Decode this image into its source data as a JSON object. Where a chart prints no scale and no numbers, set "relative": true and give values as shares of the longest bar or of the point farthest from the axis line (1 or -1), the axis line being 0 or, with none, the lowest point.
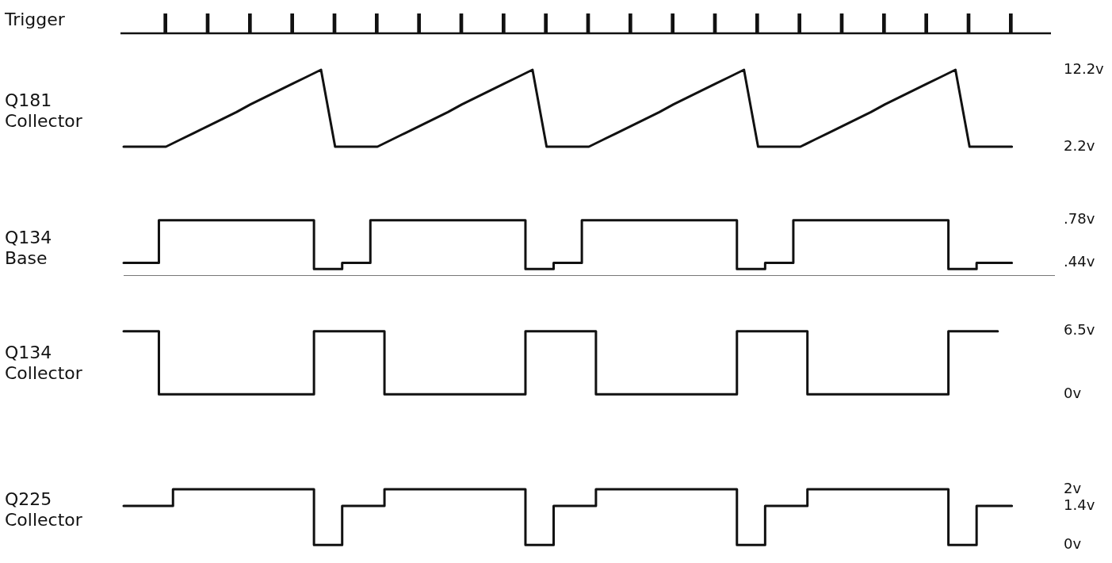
{
  "chart_data": [
    {
      "type": "bar",
      "ylabel": "Trigger",
      "relative": true,
      "tick_labels": false,
      "categories": [
        null,
        null,
        null,
        null,
        null,
        null,
        null,
        null,
        null,
        null,
        null,
        null,
        null,
        null,
        null,
        null,
        null,
        null,
        null,
        null,
        null
      ],
      "series": [
        {
          "color": "#111111",
          "values": [
            1,
            1,
            1,
            1,
            1,
            1,
            1,
            1,
            1,
            1,
            1,
            1,
            1,
            1,
            1,
            1,
            1,
            1,
            1,
            1,
            1
          ]
        }
      ]
    },
    {
      "type": "line",
      "ylabel": "Q181 Collector",
      "ylim": [
        2.2,
        12.2
      ],
      "yticks": [
        {
          "value": 12.2,
          "label": "12.2v"
        },
        {
          "value": 2.2,
          "label": "2.2v"
        }
      ],
      "tick_labels": "y",
      "categories": [
        null,
        null,
        null,
        null,
        null,
        null,
        null,
        null,
        null,
        null,
        null,
        null,
        null,
        null,
        null,
        null,
        null,
        null,
        null,
        null,
        null,
        null,
        null,
        null,
        null,
        null,
        null,
        null,
        null,
        null,
        null,
        null,
        null,
        null,
        null,
        null,
        null,
        null,
        null,
        null,
        null,
        null,
        null,
        null,
        null,
        null,
        null,
        null,
        null,
        null,
        null,
        null,
        null,
        null,
        null,
        null,
        null,
        null,
        null,
        null,
        null,
        null,
        null,
        null,
        null,
        null,
        null
      ],
      "series": [
        {
          "color": "#111111",
          "values": [
            2.2,
            2.2,
            2.2,
            2.2,
            3.1,
            4.0,
            4.9,
            5.8,
            6.7,
            7.7,
            8.6,
            9.5,
            10.4,
            11.3,
            12.2,
            2.2,
            2.2,
            2.2,
            2.2,
            3.1,
            4.0,
            4.9,
            5.8,
            6.7,
            7.7,
            8.6,
            9.5,
            10.4,
            11.3,
            12.2,
            2.2,
            2.2,
            2.2,
            2.2,
            3.1,
            4.0,
            4.9,
            5.8,
            6.7,
            7.7,
            8.6,
            9.5,
            10.4,
            11.3,
            12.2,
            2.2,
            2.2,
            2.2,
            2.2,
            3.1,
            4.0,
            4.9,
            5.8,
            6.7,
            7.7,
            8.6,
            9.5,
            10.4,
            11.3,
            12.2,
            2.2,
            2.2,
            2.2,
            2.2,
            null,
            null,
            null
          ]
        }
      ]
    },
    {
      "type": "step",
      "ylabel": "Q134 Base",
      "ylim": [
        0.34,
        0.78
      ],
      "yticks": [
        {
          "value": 0.78,
          "label": ".78v"
        },
        {
          "value": 0.44,
          "label": ".44v"
        }
      ],
      "tick_labels": "y",
      "categories": [
        null,
        null,
        null,
        null,
        null,
        null,
        null,
        null,
        null,
        null,
        null,
        null,
        null,
        null,
        null,
        null,
        null,
        null,
        null,
        null,
        null,
        null,
        null,
        null,
        null,
        null,
        null,
        null,
        null,
        null,
        null,
        null,
        null,
        null,
        null,
        null,
        null,
        null,
        null,
        null,
        null,
        null,
        null,
        null,
        null,
        null,
        null,
        null,
        null,
        null,
        null,
        null,
        null,
        null,
        null,
        null,
        null,
        null,
        null,
        null,
        null,
        null,
        null,
        null,
        null,
        null,
        null
      ],
      "series": [
        {
          "color": "#111111",
          "values": [
            0.44,
            0.44,
            0.44,
            0.78,
            0.78,
            0.78,
            0.78,
            0.78,
            0.78,
            0.78,
            0.78,
            0.78,
            0.78,
            0.78,
            0.39,
            0.39,
            0.44,
            0.44,
            0.78,
            0.78,
            0.78,
            0.78,
            0.78,
            0.78,
            0.78,
            0.78,
            0.78,
            0.78,
            0.78,
            0.39,
            0.39,
            0.44,
            0.44,
            0.78,
            0.78,
            0.78,
            0.78,
            0.78,
            0.78,
            0.78,
            0.78,
            0.78,
            0.78,
            0.78,
            0.39,
            0.39,
            0.44,
            0.44,
            0.78,
            0.78,
            0.78,
            0.78,
            0.78,
            0.78,
            0.78,
            0.78,
            0.78,
            0.78,
            0.78,
            0.39,
            0.39,
            0.44,
            0.44,
            0.44,
            null,
            null,
            null
          ]
        }
      ]
    },
    {
      "type": "step",
      "ylabel": "Q134 Collector",
      "ylim": [
        0,
        6.5
      ],
      "yticks": [
        {
          "value": 6.5,
          "label": "6.5v"
        },
        {
          "value": 0,
          "label": "0v"
        }
      ],
      "tick_labels": "y",
      "categories": [
        null,
        null,
        null,
        null,
        null,
        null,
        null,
        null,
        null,
        null,
        null,
        null,
        null,
        null,
        null,
        null,
        null,
        null,
        null,
        null,
        null,
        null,
        null,
        null,
        null,
        null,
        null,
        null,
        null,
        null,
        null,
        null,
        null,
        null,
        null,
        null,
        null,
        null,
        null,
        null,
        null,
        null,
        null,
        null,
        null,
        null,
        null,
        null,
        null,
        null,
        null,
        null,
        null,
        null,
        null,
        null,
        null,
        null,
        null,
        null,
        null,
        null,
        null,
        null,
        null,
        null,
        null
      ],
      "series": [
        {
          "color": "#111111",
          "values": [
            6.5,
            6.5,
            6.5,
            0,
            0,
            0,
            0,
            0,
            0,
            0,
            0,
            0,
            0,
            0,
            6.5,
            6.5,
            6.5,
            6.5,
            6.5,
            0,
            0,
            0,
            0,
            0,
            0,
            0,
            0,
            0,
            0,
            6.5,
            6.5,
            6.5,
            6.5,
            6.5,
            0,
            0,
            0,
            0,
            0,
            0,
            0,
            0,
            0,
            0,
            6.5,
            6.5,
            6.5,
            6.5,
            6.5,
            0,
            0,
            0,
            0,
            0,
            0,
            0,
            0,
            0,
            0,
            6.5,
            6.5,
            6.5,
            6.5,
            null,
            null,
            null,
            null
          ]
        }
      ]
    },
    {
      "type": "step",
      "ylabel": "Q225 Collector",
      "ylim": [
        0,
        2
      ],
      "yticks": [
        {
          "value": 2,
          "label": "2v"
        },
        {
          "value": 1.4,
          "label": "1.4v"
        },
        {
          "value": 0,
          "label": "0v"
        }
      ],
      "tick_labels": "y",
      "categories": [
        null,
        null,
        null,
        null,
        null,
        null,
        null,
        null,
        null,
        null,
        null,
        null,
        null,
        null,
        null,
        null,
        null,
        null,
        null,
        null,
        null,
        null,
        null,
        null,
        null,
        null,
        null,
        null,
        null,
        null,
        null,
        null,
        null,
        null,
        null,
        null,
        null,
        null,
        null,
        null,
        null,
        null,
        null,
        null,
        null,
        null,
        null,
        null,
        null,
        null,
        null,
        null,
        null,
        null,
        null,
        null,
        null,
        null,
        null,
        null,
        null,
        null,
        null,
        null,
        null,
        null,
        null
      ],
      "series": [
        {
          "color": "#111111",
          "values": [
            1.4,
            1.4,
            1.4,
            1.4,
            2,
            2,
            2,
            2,
            2,
            2,
            2,
            2,
            2,
            2,
            0,
            0,
            1.4,
            1.4,
            1.4,
            2,
            2,
            2,
            2,
            2,
            2,
            2,
            2,
            2,
            2,
            0,
            0,
            1.4,
            1.4,
            1.4,
            2,
            2,
            2,
            2,
            2,
            2,
            2,
            2,
            2,
            2,
            0,
            0,
            1.4,
            1.4,
            1.4,
            2,
            2,
            2,
            2,
            2,
            2,
            2,
            2,
            2,
            2,
            0,
            0,
            1.4,
            1.4,
            1.4,
            null,
            null,
            null
          ]
        }
      ]
    }
  ]
}
